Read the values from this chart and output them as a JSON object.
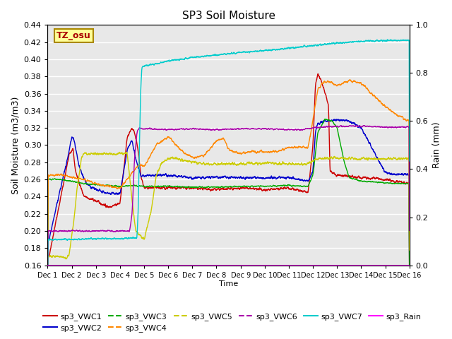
{
  "title": "SP3 Soil Moisture",
  "xlabel": "Time",
  "ylabel_left": "Soil Moisture (m3/m3)",
  "ylabel_right": "Rain (mm)",
  "annotation": "TZ_osu",
  "xlim": [
    0,
    15
  ],
  "ylim_left": [
    0.16,
    0.44
  ],
  "ylim_right": [
    0.0,
    1.0
  ],
  "xtick_labels": [
    "Dec 1",
    "Dec 2",
    "Dec 3",
    "Dec 4",
    "Dec 5",
    "Dec 6",
    "Dec 7",
    "Dec 8",
    "Dec 9",
    "Dec 10",
    "Dec 11",
    "Dec 12",
    "Dec 13",
    "Dec 14",
    "Dec 15",
    "Dec 16"
  ],
  "yticks_left": [
    0.16,
    0.18,
    0.2,
    0.22,
    0.24,
    0.26,
    0.28,
    0.3,
    0.32,
    0.34,
    0.36,
    0.38,
    0.4,
    0.42,
    0.44
  ],
  "yticks_right": [
    0.0,
    0.2,
    0.4,
    0.6,
    0.8,
    1.0
  ],
  "colors": {
    "sp3_VWC1": "#cc0000",
    "sp3_VWC2": "#0000cc",
    "sp3_VWC3": "#00aa00",
    "sp3_VWC4": "#ff8800",
    "sp3_VWC5": "#cccc00",
    "sp3_VWC6": "#aa00aa",
    "sp3_VWC7": "#00cccc",
    "sp3_Rain": "#ff00ff"
  },
  "background_color": "#e8e8e8",
  "grid_color": "#ffffff",
  "legend_linestyles": {
    "sp3_VWC1": "-",
    "sp3_VWC2": "-",
    "sp3_VWC3": "--",
    "sp3_VWC4": "--",
    "sp3_VWC5": "--",
    "sp3_VWC6": "--",
    "sp3_VWC7": "-",
    "sp3_Rain": "-"
  }
}
